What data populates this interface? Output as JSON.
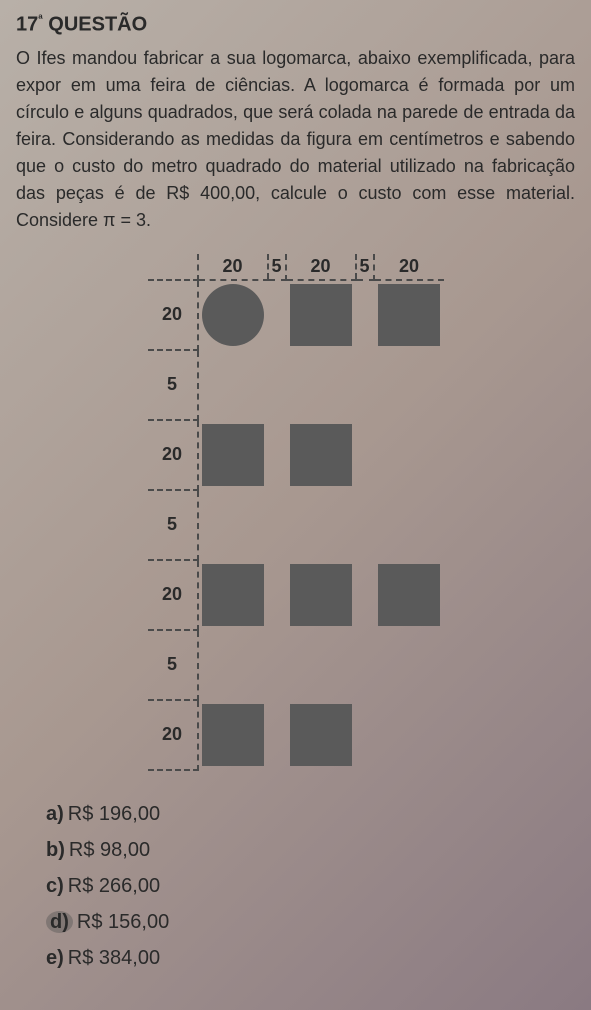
{
  "header": {
    "number": "17",
    "ordinal": "ª",
    "label": "QUESTÃO"
  },
  "body": {
    "text": "O Ifes mandou fabricar a sua logomarca, abaixo exemplificada, para expor em uma feira de ciências. A logomarca é formada por um círculo e alguns quadrados, que será colada na parede de entrada da feira. Considerando as medidas da figura em centímetros e sabendo que o custo do metro quadrado do material utilizado na fabricação das peças é de R$ 400,00, calcule o custo com esse material. Considere π = 3."
  },
  "figure": {
    "cols": [
      {
        "label": "20",
        "type": "big"
      },
      {
        "label": "5",
        "type": "gap"
      },
      {
        "label": "20",
        "type": "big"
      },
      {
        "label": "5",
        "type": "gap"
      },
      {
        "label": "20",
        "type": "big"
      }
    ],
    "rows": [
      {
        "label": "20",
        "type": "big",
        "cells": [
          "circle",
          "",
          "square",
          "",
          "square"
        ]
      },
      {
        "label": "5",
        "type": "gap",
        "cells": [
          "",
          "",
          "",
          "",
          ""
        ]
      },
      {
        "label": "20",
        "type": "big",
        "cells": [
          "square",
          "",
          "square",
          "",
          ""
        ]
      },
      {
        "label": "5",
        "type": "gap",
        "cells": [
          "",
          "",
          "",
          "",
          ""
        ]
      },
      {
        "label": "20",
        "type": "big",
        "cells": [
          "square",
          "",
          "square",
          "",
          "square"
        ]
      },
      {
        "label": "5",
        "type": "gap",
        "cells": [
          "",
          "",
          "",
          "",
          ""
        ]
      },
      {
        "label": "20",
        "type": "big",
        "cells": [
          "square",
          "",
          "square",
          "",
          ""
        ]
      }
    ],
    "shape_color": "#5a5a5a",
    "dash_color": "#4a4a4a",
    "label_fontsize": 18
  },
  "options": {
    "a": "R$ 196,00",
    "b": "R$ 98,00",
    "c": "R$ 266,00",
    "d": "R$ 156,00",
    "e": "R$ 384,00"
  },
  "marked": "d"
}
